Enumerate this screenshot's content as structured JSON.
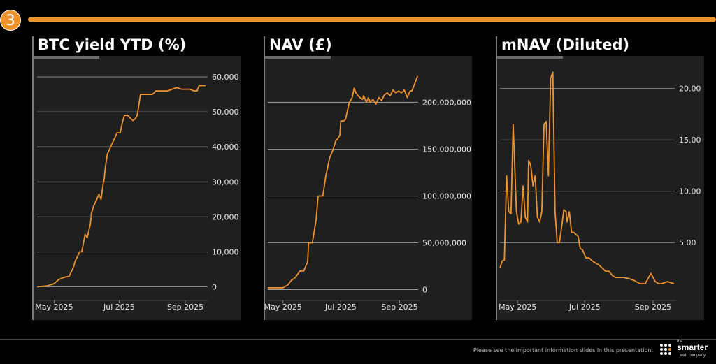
{
  "slide": {
    "number": "3"
  },
  "footer": {
    "disclaimer": "Please see the important information slides in this presentation.",
    "logo": {
      "the": "the",
      "name": "smarter",
      "tagline": "web company"
    }
  },
  "colors": {
    "accent": "#f0932b",
    "panel": "#1f1f1f",
    "grid": "#b0b0b0"
  },
  "chart_data": [
    {
      "type": "line",
      "title": "BTC yield YTD (%)",
      "xlabel": "",
      "ylabel": "",
      "x_ticks": [
        "May 2025",
        "Jul 2025",
        "Sep 2025"
      ],
      "y_ticks": [
        "0",
        "10,000",
        "20,000",
        "30,000",
        "40,000",
        "50,000",
        "60,000"
      ],
      "y_tick_values": [
        0,
        10000,
        20000,
        30000,
        40000,
        50000,
        60000
      ],
      "xlim": [
        "2025-04-15",
        "2025-09-22"
      ],
      "ylim": [
        -3500,
        64000
      ],
      "grid": true,
      "axis_side": "right",
      "series": [
        {
          "x": [
            "2025-04-15",
            "2025-04-25",
            "2025-05-01",
            "2025-05-05",
            "2025-05-10",
            "2025-05-15",
            "2025-05-19",
            "2025-05-21",
            "2025-05-25",
            "2025-05-27",
            "2025-05-30",
            "2025-06-01",
            "2025-06-04",
            "2025-06-05",
            "2025-06-07",
            "2025-06-10",
            "2025-06-12",
            "2025-06-14",
            "2025-06-16",
            "2025-06-17",
            "2025-06-18",
            "2025-06-20",
            "2025-06-23",
            "2025-06-26",
            "2025-06-29",
            "2025-07-02",
            "2025-07-04",
            "2025-07-06",
            "2025-07-09",
            "2025-07-12",
            "2025-07-14",
            "2025-07-16",
            "2025-07-18",
            "2025-07-21",
            "2025-07-24",
            "2025-07-27",
            "2025-07-30",
            "2025-08-01",
            "2025-08-03",
            "2025-08-04",
            "2025-08-10",
            "2025-08-15",
            "2025-08-20",
            "2025-08-24",
            "2025-08-28",
            "2025-09-01",
            "2025-09-05",
            "2025-09-09",
            "2025-09-12",
            "2025-09-14",
            "2025-09-20"
          ],
          "values": [
            0,
            300,
            900,
            2000,
            2700,
            3000,
            5500,
            7500,
            10000,
            10000,
            15000,
            14000,
            18000,
            21000,
            23000,
            25000,
            26500,
            25000,
            29500,
            31000,
            34000,
            38000,
            40000,
            42000,
            44000,
            44000,
            47000,
            49000,
            49000,
            48000,
            47500,
            48000,
            49000,
            55000,
            55000,
            55000,
            55000,
            55000,
            55500,
            56000,
            56000,
            56000,
            56500,
            57000,
            56500,
            56500,
            56500,
            56000,
            56000,
            57500,
            57500
          ]
        }
      ]
    },
    {
      "type": "line",
      "title": "NAV (£)",
      "xlabel": "",
      "ylabel": "",
      "x_ticks": [
        "May 2025",
        "Jul 2025",
        "Sep 2025"
      ],
      "y_ticks": [
        "0",
        "50,000,000",
        "100,000,000",
        "150,000,000",
        "200,000,000"
      ],
      "y_tick_values": [
        0,
        50000000,
        100000000,
        150000000,
        200000000
      ],
      "xlim": [
        "2025-04-15",
        "2025-09-22"
      ],
      "ylim": [
        -10000000,
        242000000
      ],
      "grid": true,
      "axis_side": "right",
      "series": [
        {
          "x": [
            "2025-04-15",
            "2025-04-20",
            "2025-04-25",
            "2025-05-01",
            "2025-05-06",
            "2025-05-10",
            "2025-05-14",
            "2025-05-19",
            "2025-05-23",
            "2025-05-27",
            "2025-05-28",
            "2025-06-01",
            "2025-06-05",
            "2025-06-07",
            "2025-06-08",
            "2025-06-12",
            "2025-06-15",
            "2025-06-19",
            "2025-06-23",
            "2025-06-26",
            "2025-06-27",
            "2025-06-30",
            "2025-07-01",
            "2025-07-04",
            "2025-07-06",
            "2025-07-10",
            "2025-07-13",
            "2025-07-15",
            "2025-07-17",
            "2025-07-21",
            "2025-07-24",
            "2025-07-25",
            "2025-07-28",
            "2025-07-30",
            "2025-08-01",
            "2025-08-04",
            "2025-08-07",
            "2025-08-10",
            "2025-08-13",
            "2025-08-16",
            "2025-08-19",
            "2025-08-22",
            "2025-08-25",
            "2025-08-28",
            "2025-08-31",
            "2025-09-03",
            "2025-09-06",
            "2025-09-09",
            "2025-09-12",
            "2025-09-14",
            "2025-09-17",
            "2025-09-20"
          ],
          "values": [
            2000000,
            2000000,
            2000000,
            2000000,
            5000000,
            10000000,
            13000000,
            20000000,
            20000000,
            30000000,
            50000000,
            50000000,
            75000000,
            100000000,
            100000000,
            100000000,
            120000000,
            140000000,
            150000000,
            160000000,
            160000000,
            165000000,
            180000000,
            180000000,
            182000000,
            200000000,
            205000000,
            215000000,
            210000000,
            205000000,
            203000000,
            207000000,
            200000000,
            205000000,
            200000000,
            203000000,
            198000000,
            205000000,
            202000000,
            208000000,
            210000000,
            207000000,
            213000000,
            210000000,
            212000000,
            210000000,
            213000000,
            205000000,
            212000000,
            212000000,
            220000000,
            228000000
          ]
        }
      ]
    },
    {
      "type": "line",
      "title": "mNAV (Diluted)",
      "xlabel": "",
      "ylabel": "",
      "x_ticks": [
        "May 2025",
        "Jul 2025",
        "Sep 2025"
      ],
      "y_ticks": [
        "5.00",
        "10.00",
        "15.00",
        "20.00"
      ],
      "y_tick_values": [
        5,
        10,
        15,
        20
      ],
      "xlim": [
        "2025-04-15",
        "2025-09-22"
      ],
      "ylim": [
        -0.5,
        22.5
      ],
      "grid": true,
      "axis_side": "right",
      "series": [
        {
          "x": [
            "2025-04-15",
            "2025-04-17",
            "2025-04-19",
            "2025-04-21",
            "2025-04-23",
            "2025-04-25",
            "2025-04-27",
            "2025-04-30",
            "2025-05-02",
            "2025-05-04",
            "2025-05-06",
            "2025-05-08",
            "2025-05-10",
            "2025-05-11",
            "2025-05-13",
            "2025-05-15",
            "2025-05-17",
            "2025-05-19",
            "2025-05-21",
            "2025-05-23",
            "2025-05-25",
            "2025-05-27",
            "2025-05-29",
            "2025-05-31",
            "2025-06-02",
            "2025-06-04",
            "2025-06-06",
            "2025-06-08",
            "2025-06-10",
            "2025-06-12",
            "2025-06-14",
            "2025-06-15",
            "2025-06-17",
            "2025-06-19",
            "2025-06-21",
            "2025-06-23",
            "2025-06-25",
            "2025-06-27",
            "2025-06-29",
            "2025-07-02",
            "2025-07-05",
            "2025-07-08",
            "2025-07-11",
            "2025-07-14",
            "2025-07-17",
            "2025-07-20",
            "2025-07-23",
            "2025-07-26",
            "2025-07-29",
            "2025-08-01",
            "2025-08-05",
            "2025-08-10",
            "2025-08-15",
            "2025-08-20",
            "2025-08-25",
            "2025-08-30",
            "2025-09-03",
            "2025-09-06",
            "2025-09-09",
            "2025-09-14",
            "2025-09-20"
          ],
          "values": [
            2.5,
            3.2,
            3.3,
            11.5,
            8.0,
            7.8,
            16.5,
            8.0,
            6.8,
            7.0,
            10.5,
            7.5,
            7.0,
            13.0,
            12.5,
            10.5,
            11.5,
            7.5,
            7.0,
            8.0,
            16.5,
            16.8,
            11.5,
            21.0,
            21.6,
            8.0,
            5.0,
            5.0,
            6.5,
            8.2,
            8.0,
            7.0,
            8.0,
            6.0,
            6.0,
            5.8,
            5.6,
            4.4,
            4.3,
            3.5,
            3.5,
            3.2,
            3.0,
            2.8,
            2.5,
            2.2,
            2.2,
            1.8,
            1.6,
            1.6,
            1.6,
            1.5,
            1.3,
            1.0,
            1.0,
            2.0,
            1.2,
            1.0,
            1.0,
            1.2,
            1.0
          ]
        }
      ]
    }
  ]
}
